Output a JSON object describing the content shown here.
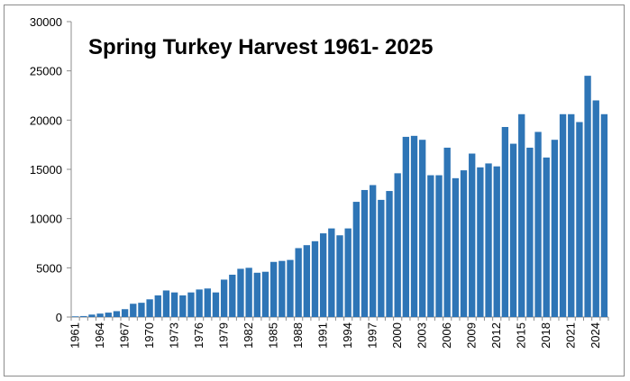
{
  "chart_data": {
    "type": "bar",
    "title": "Spring Turkey Harvest 1961- 2025",
    "xlabel": "",
    "ylabel": "",
    "ylim": [
      0,
      30000
    ],
    "yticks": [
      0,
      5000,
      10000,
      15000,
      20000,
      25000,
      30000
    ],
    "ytick_labels": [
      "0",
      "5000",
      "10000",
      "15000",
      "20000",
      "25000",
      "30000"
    ],
    "grid": false,
    "legend": "none",
    "bar_color": "#2e75b6",
    "categories": [
      "1961",
      "1962",
      "1963",
      "1964",
      "1965",
      "1966",
      "1967",
      "1968",
      "1969",
      "1970",
      "1971",
      "1972",
      "1973",
      "1974",
      "1975",
      "1976",
      "1977",
      "1978",
      "1979",
      "1980",
      "1981",
      "1982",
      "1983",
      "1984",
      "1985",
      "1986",
      "1987",
      "1988",
      "1989",
      "1990",
      "1991",
      "1992",
      "1993",
      "1994",
      "1995",
      "1996",
      "1997",
      "1998",
      "1999",
      "2000",
      "2001",
      "2002",
      "2003",
      "2004",
      "2005",
      "2006",
      "2007",
      "2008",
      "2009",
      "2010",
      "2011",
      "2012",
      "2013",
      "2014",
      "2015",
      "2016",
      "2017",
      "2018",
      "2019",
      "2020",
      "2021",
      "2022",
      "2023",
      "2024",
      "2025"
    ],
    "x_tick_labels": [
      "1961",
      "1964",
      "1967",
      "1970",
      "1973",
      "1976",
      "1979",
      "1982",
      "1985",
      "1988",
      "1991",
      "1994",
      "1997",
      "2000",
      "2003",
      "2006",
      "2009",
      "2012",
      "2015",
      "2018",
      "2021",
      "2024"
    ],
    "values": [
      70,
      100,
      250,
      350,
      450,
      600,
      800,
      1350,
      1450,
      1800,
      2200,
      2700,
      2500,
      2200,
      2500,
      2800,
      2900,
      2500,
      3800,
      4300,
      4900,
      5000,
      4500,
      4600,
      5600,
      5700,
      5800,
      7000,
      7300,
      7700,
      8500,
      9000,
      8300,
      9000,
      11700,
      12900,
      13400,
      11900,
      12800,
      14600,
      18300,
      18400,
      18000,
      14400,
      14400,
      17200,
      14100,
      14900,
      16600,
      15200,
      15600,
      15300,
      19300,
      17600,
      20600,
      17200,
      18800,
      16200,
      18000,
      20600,
      20600,
      19800,
      24500,
      22000,
      20600
    ]
  }
}
